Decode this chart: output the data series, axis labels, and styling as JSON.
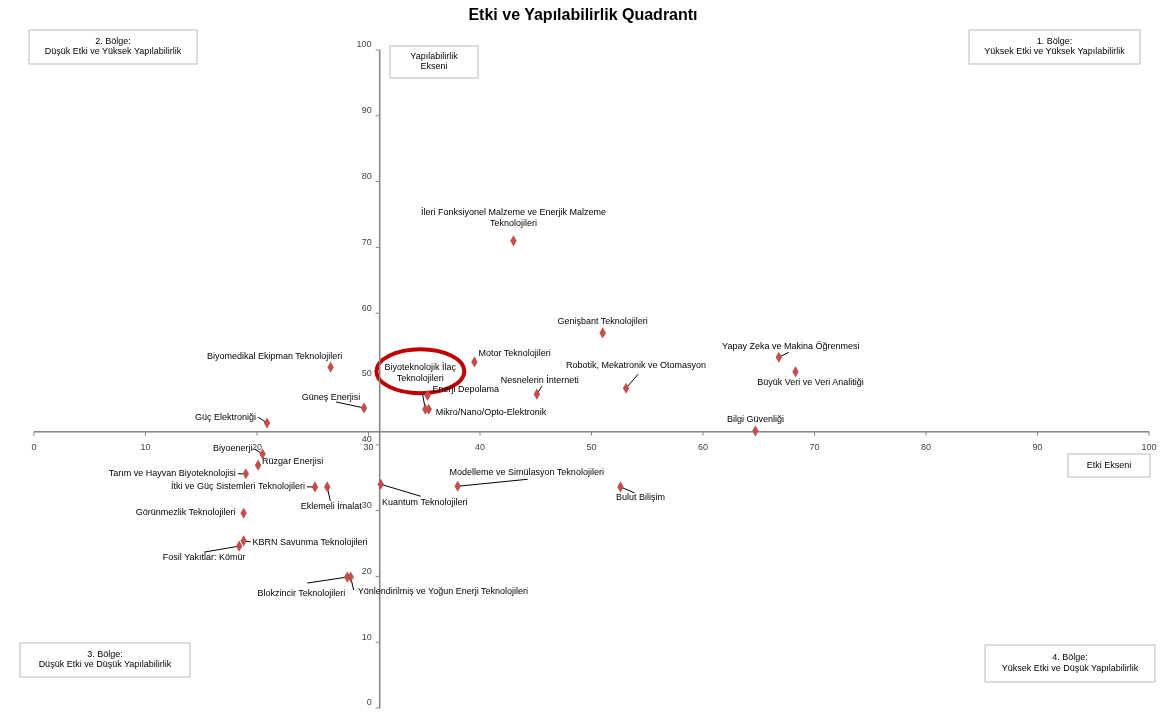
{
  "chart_data": {
    "type": "scatter",
    "title": "Etki ve Yapılabilirlik Quadrantı",
    "xlabel": "Etki Ekseni",
    "ylabel": "Yapılabilirlik\nEkseni",
    "x": [
      43.0,
      51.0,
      66.8,
      68.3,
      53.1,
      39.5,
      45.1,
      26.6,
      29.6,
      20.9,
      35.1,
      35.3,
      35.4,
      64.7,
      20.5,
      20.1,
      19.0,
      25.2,
      26.3,
      31.1,
      38.0,
      52.6,
      18.8,
      18.8,
      18.4,
      28.1,
      28.4
    ],
    "series": [
      {
        "color": "#c0504d",
        "values": [
          71.0,
          57.0,
          53.3,
          51.1,
          48.6,
          52.6,
          47.7,
          51.8,
          45.6,
          43.3,
          45.4,
          47.5,
          45.4,
          42.1,
          38.6,
          36.9,
          35.6,
          33.6,
          33.6,
          34.0,
          33.7,
          33.6,
          29.6,
          25.4,
          24.6,
          19.9,
          19.9
        ]
      }
    ],
    "marker": "diamond",
    "xlim": [
      0,
      100
    ],
    "ylim": [
      0,
      100
    ],
    "xticks": [
      0,
      10,
      20,
      30,
      40,
      50,
      60,
      70,
      80,
      90,
      100
    ],
    "yticks": [
      0,
      10,
      20,
      30,
      40,
      50,
      60,
      70,
      80,
      90,
      100
    ],
    "ref_lines": [
      {
        "axis": "x",
        "value": 31,
        "color": "#868686"
      },
      {
        "axis": "y",
        "value": 42,
        "color": "#868686"
      }
    ],
    "annotations": [
      "2. Bölge:\nDüşük Etki ve Yüksek Yapılabilirlik",
      "1. Bölge:\nYüksek Etki ve Yüksek Yapılabilirlik",
      "3. Bölge:\nDüşük Etki ve Düşük Yapılabilirlik",
      "4. Bölge:\nYüksek Etki ve Düşük Yapılabilirlik",
      {
        "text": "İleri Fonksiyonel Malzeme  ve Enerjik Malzeme\nTeknolojileri",
        "x": 43.0,
        "y": 71.0
      },
      {
        "text": "Genişbant Teknolojileri",
        "x": 51.0,
        "y": 57.0
      },
      {
        "text": "Yapay Zeka ve Makina Öğrenmesi",
        "x": 66.8,
        "y": 53.3
      },
      {
        "text": "Büyük Veri ve Veri Analitiği",
        "x": 68.3,
        "y": 51.1
      },
      {
        "text": "Robotik, Mekatronik ve Otomasyon",
        "x": 53.1,
        "y": 48.6
      },
      {
        "text": "Motor Teknolojileri",
        "x": 39.5,
        "y": 52.6
      },
      {
        "text": "Nesnelerin İnterneti",
        "x": 45.1,
        "y": 47.7
      },
      {
        "text": "Biyomedikal Ekipman Teknolojileri",
        "x": 26.6,
        "y": 51.8
      },
      {
        "text": "Güneş Enerjisi",
        "x": 29.6,
        "y": 45.6
      },
      {
        "text": "Güç Elektroniği",
        "x": 20.9,
        "y": 43.3
      },
      {
        "text": "Biyoteknolojik İlaç\nTeknolojileri",
        "x": 35.1,
        "y": 45.4
      },
      {
        "text": "Enerji Depolama",
        "x": 35.3,
        "y": 47.5
      },
      {
        "text": "Mikro/Nano/Opto-Elektronik",
        "x": 35.4,
        "y": 45.4
      },
      {
        "text": "Bilgi Güvenliği",
        "x": 64.7,
        "y": 42.1
      },
      {
        "text": "Biyoenerji",
        "x": 20.5,
        "y": 38.6
      },
      {
        "text": "Rüzgar Enerjisi",
        "x": 20.1,
        "y": 36.9
      },
      {
        "text": "Tarım ve Hayvan Biyoteknolojisi",
        "x": 19.0,
        "y": 35.6
      },
      {
        "text": "İtki ve Güç Sistemleri Teknolojileri",
        "x": 25.2,
        "y": 33.6
      },
      {
        "text": "Eklemeli İmalat",
        "x": 26.3,
        "y": 33.6
      },
      {
        "text": "Kuantum Teknolojileri",
        "x": 31.1,
        "y": 34.0
      },
      {
        "text": "Modelleme ve Simülasyon Teknolojileri",
        "x": 38.0,
        "y": 33.7
      },
      {
        "text": "Bulut Bilişim",
        "x": 52.6,
        "y": 33.6
      },
      {
        "text": "Görünmezlik  Teknolojileri",
        "x": 18.8,
        "y": 29.6
      },
      {
        "text": "KBRN Savunma Teknolojileri",
        "x": 18.8,
        "y": 25.4
      },
      {
        "text": "Fosil Yakıtlar: Kömür",
        "x": 18.4,
        "y": 24.6
      },
      {
        "text": "Blokzincir Teknolojileri",
        "x": 28.1,
        "y": 19.9
      },
      {
        "text": "Yönlendirilmiş ve Yoğun Enerji Teknolojileri",
        "x": 28.4,
        "y": 19.9
      }
    ]
  }
}
